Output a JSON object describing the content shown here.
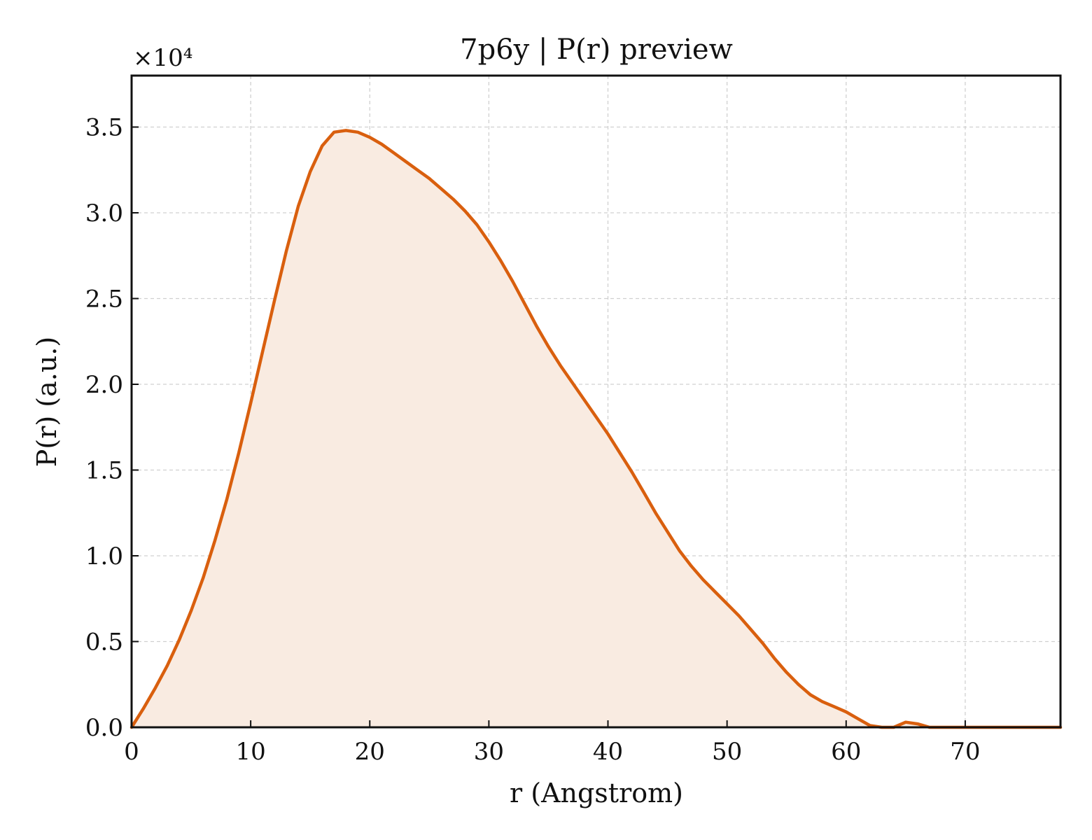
{
  "chart_data": {
    "type": "area",
    "title": "7p6y | P(r) preview",
    "xlabel": "r (Angstrom)",
    "ylabel": "P(r) (a.u.)",
    "y_multiplier_label": "×10⁴",
    "xlim": [
      0,
      78
    ],
    "ylim": [
      0,
      3.8
    ],
    "xticks": [
      "0",
      "10",
      "20",
      "30",
      "40",
      "50",
      "60",
      "70"
    ],
    "yticks": [
      "0.0",
      "0.5",
      "1.0",
      "1.5",
      "2.0",
      "2.5",
      "3.0",
      "3.5"
    ],
    "grid": true,
    "color": "#d95f0e",
    "fill_color": "#f9ebe1",
    "series": [
      {
        "x": [
          0,
          1,
          2,
          3,
          4,
          5,
          6,
          7,
          8,
          9,
          10,
          11,
          12,
          13,
          14,
          15,
          16,
          17,
          18,
          19,
          20,
          21,
          22,
          23,
          24,
          25,
          26,
          27,
          28,
          29,
          30,
          31,
          32,
          33,
          34,
          35,
          36,
          37,
          38,
          39,
          40,
          41,
          42,
          43,
          44,
          45,
          46,
          47,
          48,
          49,
          50,
          51,
          52,
          53,
          54,
          55,
          56,
          57,
          58,
          59,
          60,
          61,
          62,
          63,
          64,
          65,
          66,
          67,
          68,
          69,
          70,
          71,
          72,
          73,
          74,
          75,
          76,
          77,
          78
        ],
        "y": [
          0.0,
          0.11,
          0.23,
          0.36,
          0.51,
          0.68,
          0.87,
          1.09,
          1.33,
          1.6,
          1.89,
          2.19,
          2.49,
          2.78,
          3.04,
          3.24,
          3.39,
          3.47,
          3.48,
          3.47,
          3.44,
          3.4,
          3.35,
          3.3,
          3.25,
          3.2,
          3.14,
          3.08,
          3.01,
          2.93,
          2.83,
          2.72,
          2.6,
          2.47,
          2.34,
          2.22,
          2.11,
          2.01,
          1.91,
          1.81,
          1.71,
          1.6,
          1.49,
          1.37,
          1.25,
          1.14,
          1.03,
          0.94,
          0.86,
          0.79,
          0.72,
          0.65,
          0.57,
          0.49,
          0.4,
          0.32,
          0.25,
          0.19,
          0.15,
          0.12,
          0.09,
          0.05,
          0.01,
          0.0,
          0.0,
          0.03,
          0.02,
          0.0,
          0.0,
          0.0,
          0.0,
          0.0,
          0.0,
          0.0,
          0.0,
          0.0,
          0.0,
          0.0,
          0.0
        ]
      }
    ]
  }
}
